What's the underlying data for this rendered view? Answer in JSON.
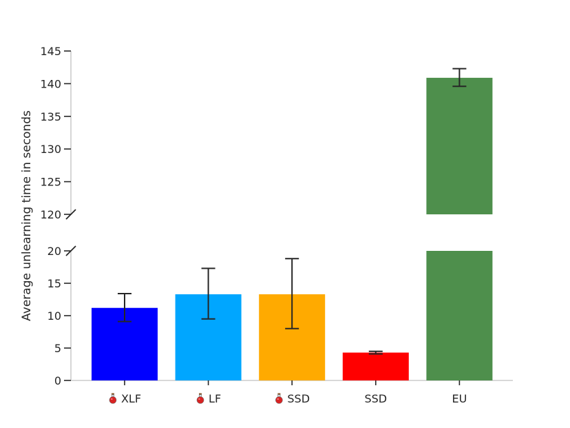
{
  "chart_data": {
    "type": "bar",
    "ylabel": "Average unlearning time in seconds",
    "xlabel": "",
    "title": "",
    "categories": [
      {
        "label": "XLF",
        "icon": "potion-flask-icon",
        "color": "#0000ff"
      },
      {
        "label": "LF",
        "icon": "potion-flask-icon",
        "color": "#00a6ff"
      },
      {
        "label": "SSD",
        "icon": "potion-flask-icon",
        "color": "#ffaa00"
      },
      {
        "label": "SSD",
        "icon": "",
        "color": "#ff0000"
      },
      {
        "label": "EU",
        "icon": "",
        "color": "#4e8f4c"
      }
    ],
    "values": [
      11.2,
      13.3,
      13.3,
      4.3,
      140.9
    ],
    "errors": [
      [
        9.1,
        13.4
      ],
      [
        9.5,
        17.3
      ],
      [
        8.0,
        18.8
      ],
      [
        4.1,
        4.5
      ],
      [
        139.6,
        142.3
      ]
    ],
    "broken_axis": {
      "lower_ylim": [
        0,
        20
      ],
      "upper_ylim": [
        120,
        145
      ],
      "lower_ticks": [
        "0",
        "5",
        "10",
        "15",
        "20"
      ],
      "upper_ticks": [
        "120",
        "125",
        "130",
        "135",
        "140",
        "145"
      ]
    },
    "grid": false,
    "legend": "none"
  }
}
